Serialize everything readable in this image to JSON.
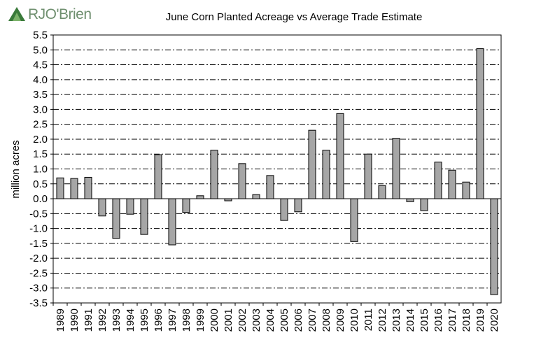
{
  "logo": {
    "text": "RJO'Brien"
  },
  "chart_data": {
    "type": "bar",
    "title": "June Corn Planted Acreage vs Average Trade Estimate",
    "ylabel": "million acres",
    "xlabel": "",
    "ylim": [
      -3.5,
      5.5
    ],
    "y_ticks": [
      "5.5",
      "5.0",
      "4.5",
      "4.0",
      "3.5",
      "3.0",
      "2.5",
      "2.0",
      "1.5",
      "1.0",
      "0.5",
      "0.0",
      "-0.5",
      "-1.0",
      "-1.5",
      "-2.0",
      "-2.5",
      "-3.0",
      "-3.5"
    ],
    "grid": true,
    "categories": [
      "1989",
      "1990",
      "1991",
      "1992",
      "1993",
      "1994",
      "1995",
      "1996",
      "1997",
      "1998",
      "1999",
      "2000",
      "2001",
      "2002",
      "2003",
      "2004",
      "2005",
      "2006",
      "2007",
      "2008",
      "2009",
      "2010",
      "2011",
      "2012",
      "2013",
      "2014",
      "2015",
      "2016",
      "2017",
      "2018",
      "2019",
      "2020"
    ],
    "values": [
      0.7,
      0.68,
      0.72,
      -0.58,
      -1.33,
      -0.52,
      -1.2,
      1.48,
      -1.55,
      -0.46,
      0.1,
      1.63,
      -0.07,
      1.18,
      0.14,
      0.78,
      -0.73,
      -0.44,
      2.3,
      1.63,
      2.86,
      -1.44,
      1.5,
      0.44,
      2.03,
      -0.1,
      -0.4,
      1.23,
      0.96,
      0.56,
      5.04,
      -3.22
    ],
    "colors": {
      "bar": "#a6a6a6",
      "bar_stroke": "#000000",
      "grid": "#000000"
    }
  }
}
